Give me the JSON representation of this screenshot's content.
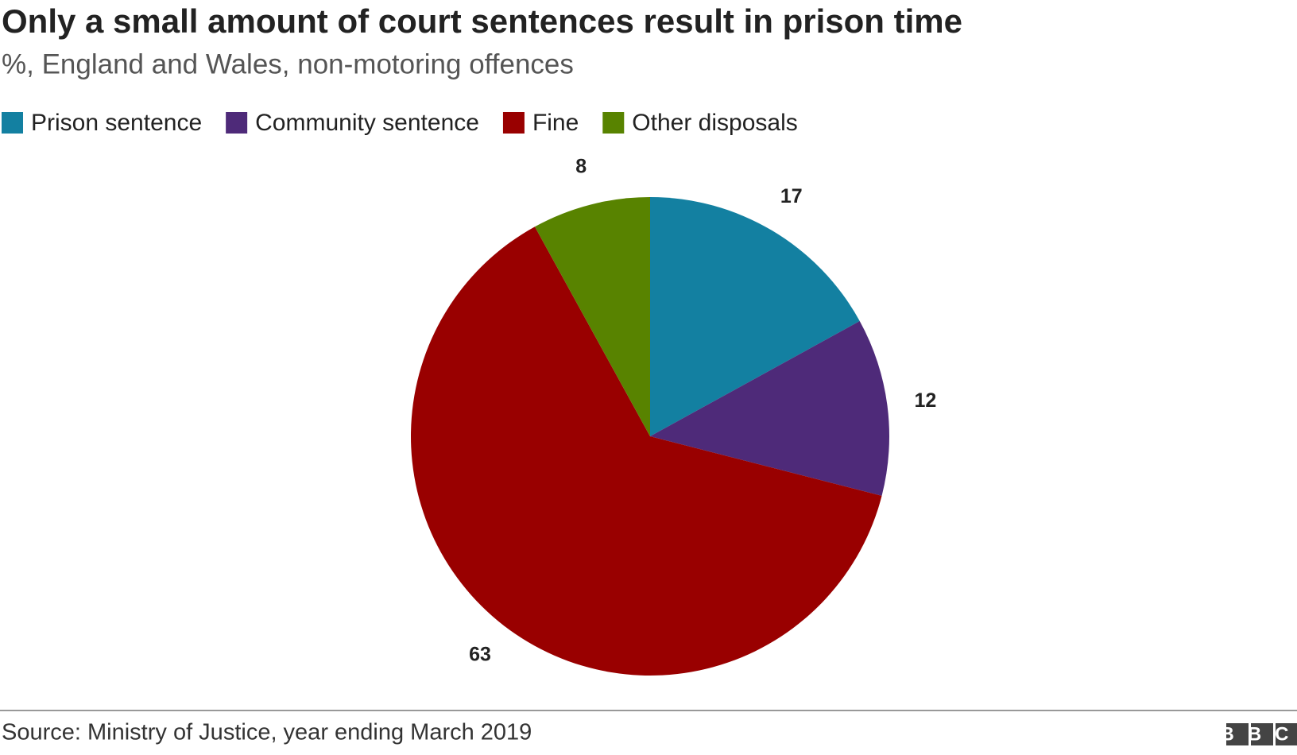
{
  "chart_data": {
    "type": "pie",
    "title": "Only a small amount of court sentences result in prison time",
    "subtitle": "%, England and Wales, non-motoring offences",
    "categories": [
      "Prison sentence",
      "Community sentence",
      "Fine",
      "Other disposals"
    ],
    "values": [
      17,
      12,
      63,
      8
    ],
    "colors": [
      "#1380a1",
      "#4e2a79",
      "#990000",
      "#588300"
    ],
    "legend": "top-left",
    "source": "Source: Ministry of Justice, year ending March 2019",
    "logo": "BBC"
  }
}
